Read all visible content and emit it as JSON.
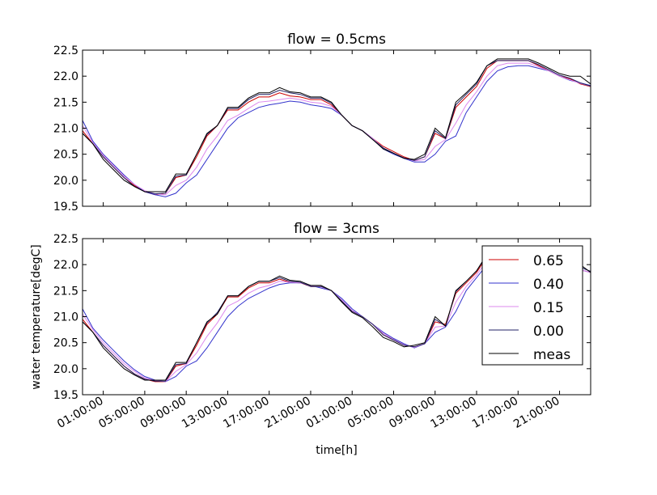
{
  "chart_data": {
    "type": "line",
    "xlabel": "time[h]",
    "ylabel": "water temperature[degC]",
    "x_tick_labels": [
      "01:00:00",
      "05:00:00",
      "09:00:00",
      "13:00:00",
      "17:00:00",
      "21:00:00",
      "01:00:00",
      "05:00:00",
      "09:00:00",
      "13:00:00",
      "17:00:00",
      "21:00:00"
    ],
    "x_ticks_hours": [
      1,
      5,
      9,
      13,
      17,
      21,
      25,
      29,
      33,
      37,
      41,
      45
    ],
    "xlim_hours": [
      -1,
      48
    ],
    "x_hours": [
      -1,
      0,
      1,
      2,
      3,
      4,
      5,
      6,
      7,
      8,
      9,
      10,
      11,
      12,
      13,
      14,
      15,
      16,
      17,
      18,
      19,
      20,
      21,
      22,
      23,
      24,
      25,
      26,
      27,
      28,
      29,
      30,
      31,
      32,
      33,
      34,
      35,
      36,
      37,
      38,
      39,
      40,
      41,
      42,
      43,
      44,
      45,
      46,
      47,
      48
    ],
    "legend": {
      "position": "right",
      "entries": [
        "0.65",
        "0.40",
        "0.15",
        "0.00",
        "meas"
      ]
    },
    "panels": [
      {
        "title": "flow = 0.5cms",
        "ylim": [
          19.5,
          22.5
        ],
        "yticks": [
          19.5,
          20.0,
          20.5,
          21.0,
          21.5,
          22.0,
          22.5
        ],
        "series": [
          {
            "name": "0.65",
            "color": "#cc0000",
            "values": [
              20.95,
              20.7,
              20.45,
              20.25,
              20.05,
              19.9,
              19.78,
              19.72,
              19.75,
              20.05,
              20.1,
              20.45,
              20.85,
              21.05,
              21.35,
              21.35,
              21.5,
              21.6,
              21.6,
              21.68,
              21.62,
              21.6,
              21.55,
              21.55,
              21.45,
              21.25,
              21.05,
              20.95,
              20.8,
              20.65,
              20.55,
              20.45,
              20.38,
              20.45,
              20.9,
              20.8,
              21.4,
              21.6,
              21.8,
              22.15,
              22.3,
              22.3,
              22.3,
              22.3,
              22.2,
              22.1,
              22.0,
              21.95,
              21.85,
              21.8
            ]
          },
          {
            "name": "0.40",
            "color": "#3333cc",
            "values": [
              21.15,
              20.75,
              20.5,
              20.3,
              20.1,
              19.92,
              19.78,
              19.72,
              19.68,
              19.75,
              19.95,
              20.1,
              20.4,
              20.7,
              21.0,
              21.2,
              21.3,
              21.4,
              21.45,
              21.48,
              21.52,
              21.5,
              21.45,
              21.42,
              21.38,
              21.25,
              21.05,
              20.95,
              20.8,
              20.6,
              20.5,
              20.42,
              20.35,
              20.35,
              20.5,
              20.75,
              20.85,
              21.3,
              21.6,
              21.9,
              22.1,
              22.18,
              22.2,
              22.2,
              22.15,
              22.1,
              22.0,
              21.92,
              21.87,
              21.82
            ]
          },
          {
            "name": "0.15",
            "color": "#dd88ee",
            "values": [
              21.05,
              20.72,
              20.48,
              20.28,
              20.08,
              19.92,
              19.8,
              19.74,
              19.72,
              19.9,
              20.0,
              20.25,
              20.6,
              20.85,
              21.15,
              21.25,
              21.38,
              21.5,
              21.52,
              21.55,
              21.58,
              21.55,
              21.5,
              21.48,
              21.42,
              21.25,
              21.05,
              20.95,
              20.8,
              20.62,
              20.52,
              20.43,
              20.37,
              20.4,
              20.65,
              20.78,
              21.1,
              21.45,
              21.7,
              22.0,
              22.2,
              22.25,
              22.25,
              22.25,
              22.18,
              22.1,
              22.0,
              21.93,
              21.86,
              21.81
            ]
          },
          {
            "name": "0.00",
            "color": "#222266",
            "values": [
              20.9,
              20.7,
              20.45,
              20.25,
              20.05,
              19.88,
              19.78,
              19.74,
              19.75,
              20.08,
              20.1,
              20.5,
              20.88,
              21.05,
              21.38,
              21.38,
              21.55,
              21.65,
              21.65,
              21.73,
              21.68,
              21.65,
              21.58,
              21.58,
              21.48,
              21.25,
              21.05,
              20.95,
              20.78,
              20.62,
              20.52,
              20.43,
              20.38,
              20.45,
              20.95,
              20.8,
              21.45,
              21.65,
              21.85,
              22.2,
              22.3,
              22.3,
              22.3,
              22.3,
              22.22,
              22.12,
              22.02,
              21.96,
              21.87,
              21.81
            ]
          },
          {
            "name": "meas",
            "color": "#000000",
            "values": [
              20.9,
              20.7,
              20.4,
              20.2,
              20.0,
              19.88,
              19.78,
              19.78,
              19.78,
              20.12,
              20.12,
              20.5,
              20.9,
              21.05,
              21.4,
              21.4,
              21.58,
              21.68,
              21.68,
              21.78,
              21.7,
              21.68,
              21.6,
              21.6,
              21.5,
              21.25,
              21.05,
              20.95,
              20.78,
              20.6,
              20.52,
              20.42,
              20.4,
              20.5,
              21.0,
              20.82,
              21.5,
              21.68,
              21.88,
              22.2,
              22.33,
              22.33,
              22.33,
              22.33,
              22.25,
              22.15,
              22.05,
              22.0,
              22.0,
              21.85
            ]
          }
        ]
      },
      {
        "title": "flow = 3cms",
        "ylim": [
          19.5,
          22.5
        ],
        "yticks": [
          19.5,
          20.0,
          20.5,
          21.0,
          21.5,
          22.0,
          22.5
        ],
        "series": [
          {
            "name": "0.65",
            "color": "#cc0000",
            "values": [
              20.95,
              20.7,
              20.45,
              20.25,
              20.05,
              19.9,
              19.8,
              19.75,
              19.75,
              20.05,
              20.1,
              20.45,
              20.85,
              21.05,
              21.38,
              21.38,
              21.55,
              21.65,
              21.65,
              21.72,
              21.66,
              21.65,
              21.58,
              21.58,
              21.5,
              21.3,
              21.1,
              21.0,
              20.85,
              20.65,
              20.55,
              20.45,
              20.42,
              20.48,
              20.9,
              20.85,
              21.45,
              21.65,
              21.85,
              22.15,
              22.28,
              22.3,
              22.3,
              22.3,
              22.22,
              22.12,
              22.02,
              21.96,
              21.9,
              21.85
            ]
          },
          {
            "name": "0.40",
            "color": "#3333cc",
            "values": [
              21.15,
              20.78,
              20.55,
              20.35,
              20.15,
              19.98,
              19.85,
              19.78,
              19.75,
              19.85,
              20.05,
              20.15,
              20.4,
              20.7,
              21.0,
              21.2,
              21.35,
              21.45,
              21.55,
              21.62,
              21.65,
              21.65,
              21.6,
              21.55,
              21.5,
              21.35,
              21.15,
              21.0,
              20.85,
              20.7,
              20.58,
              20.48,
              20.4,
              20.48,
              20.7,
              20.8,
              21.1,
              21.5,
              21.75,
              22.0,
              22.15,
              22.2,
              22.22,
              22.22,
              22.18,
              22.1,
              22.02,
              21.95,
              21.9,
              21.85
            ]
          },
          {
            "name": "0.15",
            "color": "#dd88ee",
            "values": [
              21.05,
              20.75,
              20.5,
              20.3,
              20.1,
              19.95,
              19.82,
              19.77,
              19.75,
              19.95,
              20.08,
              20.3,
              20.62,
              20.88,
              21.2,
              21.3,
              21.45,
              21.55,
              21.6,
              21.68,
              21.66,
              21.65,
              21.59,
              21.57,
              21.5,
              21.32,
              21.12,
              21.0,
              20.85,
              20.68,
              20.56,
              20.46,
              20.41,
              20.48,
              20.8,
              20.82,
              21.28,
              21.58,
              21.8,
              22.08,
              22.22,
              22.25,
              22.26,
              22.26,
              22.2,
              22.11,
              22.02,
              21.96,
              21.9,
              21.85
            ]
          },
          {
            "name": "0.00",
            "color": "#222266",
            "values": [
              20.9,
              20.7,
              20.45,
              20.25,
              20.05,
              19.9,
              19.8,
              19.76,
              19.76,
              20.08,
              20.1,
              20.5,
              20.88,
              21.08,
              21.4,
              21.4,
              21.58,
              21.68,
              21.68,
              21.75,
              21.68,
              21.66,
              21.58,
              21.58,
              21.5,
              21.3,
              21.1,
              21.0,
              20.85,
              20.65,
              20.55,
              20.45,
              20.42,
              20.48,
              20.95,
              20.82,
              21.48,
              21.68,
              21.88,
              22.18,
              22.3,
              22.3,
              22.3,
              22.3,
              22.22,
              22.12,
              22.02,
              21.98,
              21.95,
              21.87
            ]
          },
          {
            "name": "meas",
            "color": "#000000",
            "values": [
              20.9,
              20.7,
              20.4,
              20.2,
              20.0,
              19.88,
              19.78,
              19.78,
              19.78,
              20.12,
              20.12,
              20.5,
              20.9,
              21.05,
              21.4,
              21.4,
              21.58,
              21.68,
              21.68,
              21.78,
              21.7,
              21.68,
              21.6,
              21.6,
              21.5,
              21.28,
              21.08,
              20.98,
              20.8,
              20.6,
              20.52,
              20.42,
              20.45,
              20.5,
              21.0,
              20.82,
              21.5,
              21.68,
              21.88,
              22.2,
              22.33,
              22.33,
              22.33,
              22.33,
              22.25,
              22.15,
              22.05,
              22.0,
              22.0,
              21.85
            ]
          }
        ]
      }
    ]
  }
}
